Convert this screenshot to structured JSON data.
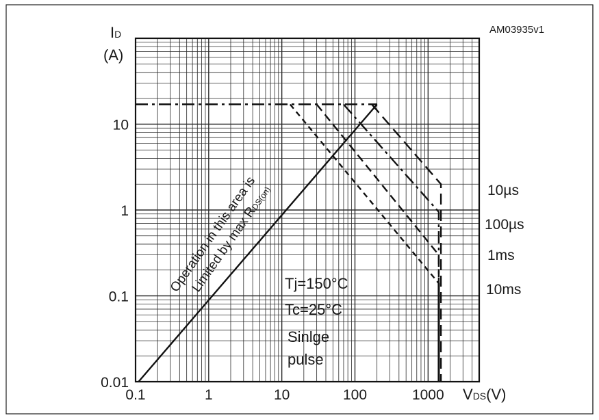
{
  "figure_code": "AM03935v1",
  "chart_data": {
    "type": "line",
    "title": "",
    "xlabel": {
      "main": "V",
      "sub": "DS",
      "unit": "(V)"
    },
    "ylabel": {
      "main": "I",
      "sub": "D",
      "unit": "(A)"
    },
    "x_scale": "log",
    "y_scale": "log",
    "xlim": [
      0.1,
      5000
    ],
    "ylim": [
      0.01,
      100
    ],
    "grid": true,
    "x_ticks": [
      {
        "value": 0.1,
        "label": "0.1"
      },
      {
        "value": 1,
        "label": "1"
      },
      {
        "value": 10,
        "label": "10"
      },
      {
        "value": 100,
        "label": "100"
      },
      {
        "value": 1000,
        "label": "1000"
      }
    ],
    "y_ticks": [
      {
        "value": 0.01,
        "label": "0.01"
      },
      {
        "value": 0.1,
        "label": "0.1"
      },
      {
        "value": 1,
        "label": "1"
      },
      {
        "value": 10,
        "label": "10"
      }
    ],
    "limit_line": {
      "x": [
        0.11,
        200
      ],
      "y": [
        0.01,
        17
      ],
      "label_line1": "Operation in this area is",
      "label_line2_main": "Limited by max R",
      "label_line2_sub": "DS(on)"
    },
    "current_limit": {
      "x": [
        0.1,
        200
      ],
      "y": [
        17,
        17
      ]
    },
    "series": [
      {
        "name": "10µs",
        "x": [
          170,
          1500,
          1500
        ],
        "y": [
          17,
          2.0,
          0.01
        ]
      },
      {
        "name": "100µs",
        "x": [
          70,
          1400,
          1400
        ],
        "y": [
          17,
          0.95,
          0.01
        ]
      },
      {
        "name": "1ms",
        "x": [
          30,
          1400,
          1400
        ],
        "y": [
          17,
          0.3,
          0.01
        ]
      },
      {
        "name": "10ms",
        "x": [
          13,
          1400,
          1400
        ],
        "y": [
          17,
          0.14,
          0.01
        ]
      }
    ],
    "annotations": {
      "tj": "Tj=150°C",
      "tc": "Tc=25°C",
      "pulse_line1": "Sinlge",
      "pulse_line2": "pulse"
    }
  }
}
